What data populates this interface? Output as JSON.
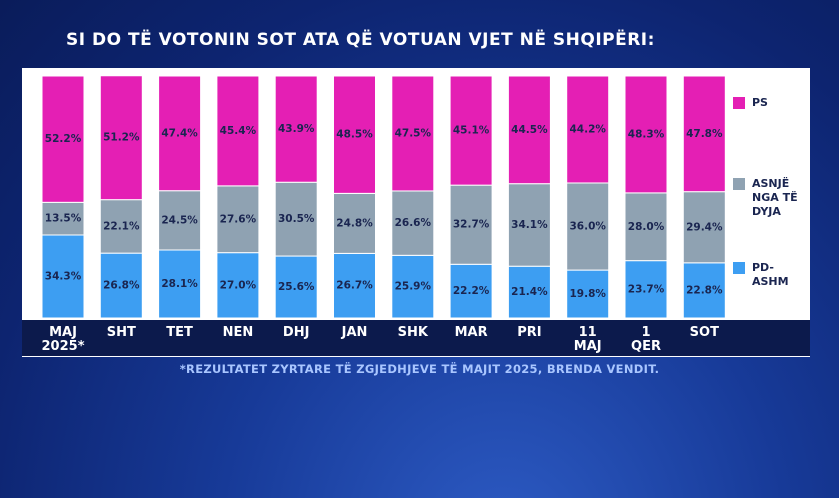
{
  "chart_data": {
    "type": "stacked_bar",
    "title": "SI DO TË VOTONIN SOT ATA QË VOTUAN VJET NË SHQIPËRI:",
    "footnote": "*REZULTATET ZYRTARE TË ZGJEDHJEVE TË MAJIT 2025, BRENDA VENDIT.",
    "categories": [
      "MAJ 2025*",
      "SHT",
      "TET",
      "NEN",
      "DHJ",
      "JAN",
      "SHK",
      "MAR",
      "PRI",
      "11 MAJ",
      "1 QER",
      "SOT"
    ],
    "ylim": [
      0,
      100
    ],
    "legend": "right",
    "series": [
      {
        "name": "PD-ASHM",
        "color": "#3d9ef2",
        "values": [
          34.3,
          26.8,
          28.1,
          27.0,
          25.6,
          26.7,
          25.9,
          22.2,
          21.4,
          19.8,
          23.7,
          22.8
        ],
        "value_labels": [
          "34.3%",
          "26.8%",
          "28.1%",
          "27.0%",
          "25.6%",
          "26.7%",
          "25.9%",
          "22.2%",
          "21.4%",
          "19.8%",
          "23.7%",
          "22.8%"
        ]
      },
      {
        "name": "ASNJË NGA TË DYJA",
        "color": "#8fa2b2",
        "values": [
          13.5,
          22.1,
          24.5,
          27.6,
          30.5,
          24.8,
          26.6,
          32.7,
          34.1,
          36.0,
          28.0,
          29.4
        ],
        "value_labels": [
          "13.5%",
          "22.1%",
          "24.5%",
          "27.6%",
          "30.5%",
          "24.8%",
          "26.6%",
          "32.7%",
          "34.1%",
          "36.0%",
          "28.0%",
          "29.4%"
        ]
      },
      {
        "name": "PS",
        "color": "#e41fb4",
        "values": [
          52.2,
          51.2,
          47.4,
          45.4,
          43.9,
          48.5,
          47.5,
          45.1,
          44.5,
          44.2,
          48.3,
          47.8
        ],
        "value_labels": [
          "52.2%",
          "51.2%",
          "47.4%",
          "45.4%",
          "43.9%",
          "48.5%",
          "47.5%",
          "45.1%",
          "44.5%",
          "44.2%",
          "48.3%",
          "47.8%"
        ]
      }
    ]
  }
}
